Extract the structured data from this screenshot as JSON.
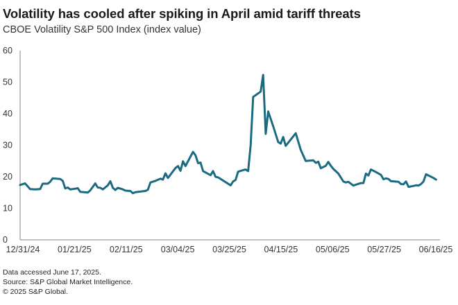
{
  "chart_data": {
    "type": "line",
    "title": "Volatility has cooled after spiking in April amid tariff threats",
    "subtitle": "CBOE Volatility S&P 500 Index (index value)",
    "xlabel": "",
    "ylabel": "",
    "ylim": [
      0,
      60
    ],
    "yticks": [
      0,
      10,
      20,
      30,
      40,
      50,
      60
    ],
    "xtick_labels": [
      "12/31/24",
      "01/21/25",
      "02/11/25",
      "03/04/25",
      "03/25/25",
      "04/15/25",
      "05/06/25",
      "05/27/25",
      "06/16/25"
    ],
    "x_range_days": [
      0,
      167
    ],
    "grid": false,
    "legend": "none",
    "line_color": "#1a6b82",
    "series": [
      {
        "name": "CBOE Volatility S&P 500 Index",
        "points": [
          [
            0,
            17.4
          ],
          [
            2,
            17.9
          ],
          [
            4,
            16.1
          ],
          [
            6,
            16.0
          ],
          [
            8,
            16.1
          ],
          [
            9,
            17.8
          ],
          [
            11,
            17.8
          ],
          [
            12,
            18.4
          ],
          [
            13,
            19.5
          ],
          [
            16,
            19.3
          ],
          [
            17,
            18.7
          ],
          [
            18,
            16.3
          ],
          [
            19,
            16.6
          ],
          [
            20,
            16.0
          ],
          [
            22,
            16.2
          ],
          [
            23,
            16.4
          ],
          [
            24,
            15.2
          ],
          [
            27,
            15.0
          ],
          [
            28,
            15.7
          ],
          [
            30,
            17.9
          ],
          [
            31,
            16.6
          ],
          [
            32,
            16.5
          ],
          [
            33,
            16.0
          ],
          [
            35,
            17.3
          ],
          [
            36,
            18.6
          ],
          [
            37,
            16.5
          ],
          [
            38,
            15.8
          ],
          [
            39,
            16.5
          ],
          [
            41,
            16.0
          ],
          [
            42,
            15.6
          ],
          [
            44,
            15.5
          ],
          [
            45,
            14.8
          ],
          [
            46,
            15.1
          ],
          [
            48,
            15.3
          ],
          [
            49,
            15.4
          ],
          [
            50,
            15.5
          ],
          [
            51,
            15.9
          ],
          [
            52,
            18.2
          ],
          [
            54,
            18.7
          ],
          [
            56,
            19.4
          ],
          [
            57,
            19.1
          ],
          [
            58,
            21.1
          ],
          [
            59,
            19.6
          ],
          [
            62,
            22.8
          ],
          [
            63,
            23.4
          ],
          [
            64,
            21.9
          ],
          [
            65,
            24.9
          ],
          [
            66,
            23.4
          ],
          [
            69,
            27.9
          ],
          [
            70,
            26.8
          ],
          [
            71,
            24.3
          ],
          [
            72,
            24.5
          ],
          [
            73,
            21.8
          ],
          [
            76,
            20.5
          ],
          [
            77,
            21.8
          ],
          [
            78,
            20.0
          ],
          [
            79,
            19.8
          ],
          [
            84,
            17.3
          ],
          [
            85,
            18.5
          ],
          [
            86,
            19.0
          ],
          [
            87,
            21.6
          ],
          [
            89,
            22.1
          ],
          [
            90,
            22.3
          ],
          [
            91,
            21.8
          ],
          [
            92,
            30.0
          ],
          [
            93,
            45.3
          ],
          [
            96,
            47.0
          ],
          [
            97,
            52.3
          ],
          [
            98,
            33.6
          ],
          [
            99,
            40.7
          ],
          [
            101,
            36.0
          ],
          [
            103,
            31.0
          ],
          [
            104,
            30.5
          ],
          [
            105,
            32.6
          ],
          [
            106,
            29.8
          ],
          [
            110,
            33.8
          ],
          [
            112,
            28.5
          ],
          [
            114,
            25.0
          ],
          [
            117,
            25.2
          ],
          [
            118,
            24.4
          ],
          [
            119,
            24.8
          ],
          [
            120,
            22.7
          ],
          [
            122,
            23.5
          ],
          [
            123,
            24.7
          ],
          [
            124,
            23.5
          ],
          [
            125,
            22.5
          ],
          [
            127,
            21.0
          ],
          [
            129,
            18.5
          ],
          [
            130,
            18.2
          ],
          [
            131,
            18.4
          ],
          [
            133,
            17.2
          ],
          [
            134,
            17.5
          ],
          [
            136,
            18.0
          ],
          [
            137,
            18.0
          ],
          [
            138,
            21.0
          ],
          [
            139,
            20.4
          ],
          [
            140,
            22.3
          ],
          [
            142,
            21.5
          ],
          [
            144,
            20.6
          ],
          [
            145,
            19.2
          ],
          [
            146,
            19.5
          ],
          [
            147,
            19.3
          ],
          [
            148,
            18.6
          ],
          [
            151,
            18.4
          ],
          [
            152,
            17.7
          ],
          [
            153,
            17.6
          ],
          [
            154,
            18.5
          ],
          [
            155,
            16.8
          ],
          [
            157,
            17.1
          ],
          [
            158,
            17.3
          ],
          [
            159,
            17.2
          ],
          [
            160,
            17.7
          ],
          [
            161,
            18.5
          ],
          [
            162,
            20.8
          ],
          [
            165,
            19.6
          ],
          [
            166,
            19.1
          ]
        ]
      }
    ]
  },
  "footer": {
    "line1": "Data accessed June 17, 2025.",
    "line2": "Source: S&P Global Market Intelligence.",
    "line3": "© 2025 S&P Global."
  }
}
